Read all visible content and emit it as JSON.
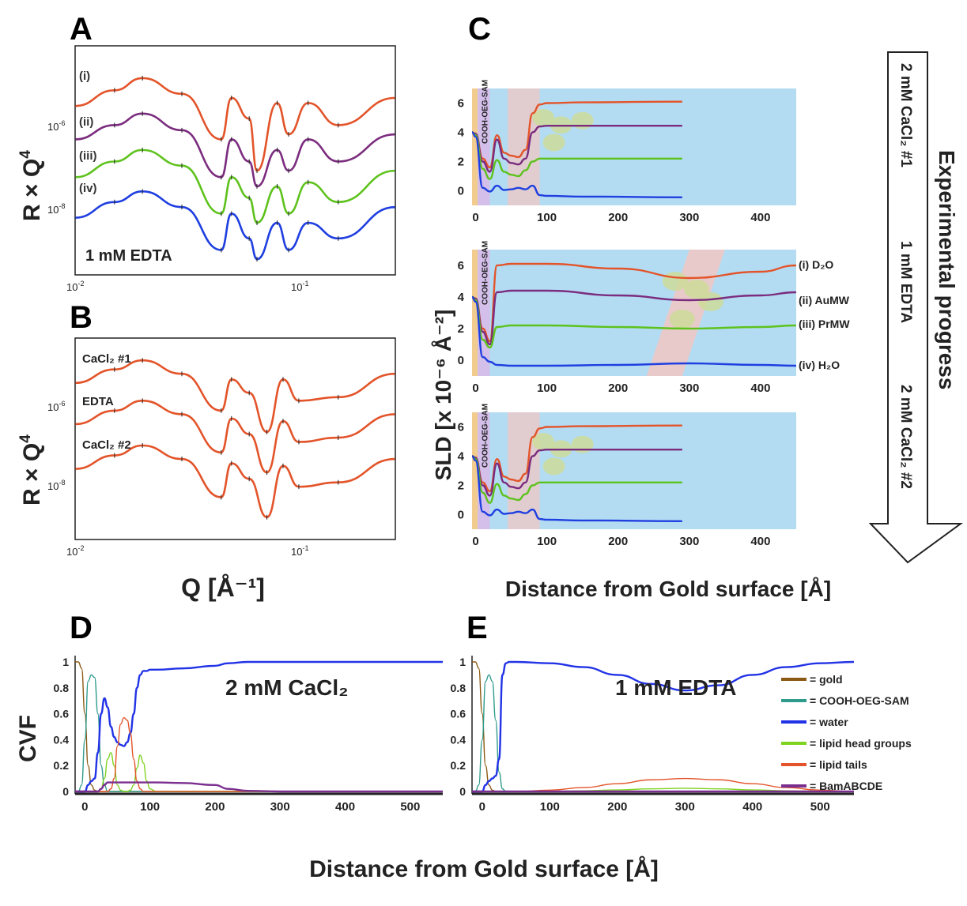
{
  "figure": {
    "panels": [
      {
        "id": "A",
        "type": "line",
        "ylabel": "R × Q",
        "ylabel_sup": "4",
        "annotation": "1 mM EDTA",
        "xscale": "log",
        "yscale": "log",
        "xticks": [
          {
            "base": "10",
            "exp": "-2"
          },
          {
            "base": "10",
            "exp": "-1"
          }
        ],
        "yticks": [
          {
            "base": "10",
            "exp": "-6"
          },
          {
            "base": "10",
            "exp": "-8"
          }
        ],
        "series": [
          {
            "name": "(i)",
            "color": "#e3542a"
          },
          {
            "name": "(ii)",
            "color": "#7b2c7e"
          },
          {
            "name": "(iii)",
            "color": "#5ec21d"
          },
          {
            "name": "(iv)",
            "color": "#1f3fe0"
          }
        ]
      },
      {
        "id": "B",
        "type": "line",
        "ylabel": "R × Q",
        "ylabel_sup": "4",
        "xscale": "log",
        "yscale": "log",
        "xticks": [
          {
            "base": "10",
            "exp": "-2"
          },
          {
            "base": "10",
            "exp": "-1"
          }
        ],
        "yticks": [
          {
            "base": "10",
            "exp": "-6"
          },
          {
            "base": "10",
            "exp": "-8"
          }
        ],
        "series": [
          {
            "name": "CaCl₂ #1",
            "color": "#e3542a"
          },
          {
            "name": "EDTA",
            "color": "#e3542a"
          },
          {
            "name": "CaCl₂ #2",
            "color": "#e3542a"
          }
        ]
      },
      {
        "id": "C",
        "type": "line",
        "ylabel": "SLD [x 10⁻⁶ Å⁻²]",
        "xlabel": "Distance from Gold surface [Å]",
        "xticks": [
          0,
          100,
          200,
          300,
          400
        ],
        "yticks": [
          0,
          2,
          4,
          6
        ],
        "layer_label": "COOH-OEG-SAM",
        "series_labels": [
          "(i) D₂O",
          "(ii) AuMW",
          "(iii) PrMW",
          "(iv) H₂O"
        ]
      },
      {
        "id": "D",
        "type": "line",
        "ylabel": "CVF",
        "annotation": "2 mM CaCl₂",
        "xticks": [
          0,
          100,
          200,
          300,
          400,
          500
        ],
        "yticks": [
          0,
          0.2,
          0.4,
          0.6,
          0.8,
          1
        ]
      },
      {
        "id": "E",
        "type": "line",
        "annotation": "1 mM EDTA",
        "xticks": [
          0,
          100,
          200,
          300,
          400,
          500
        ],
        "yticks": [
          0,
          0.2,
          0.4,
          0.6,
          0.8,
          1
        ]
      }
    ],
    "shared_xlabel_AB": "Q [Å⁻¹]",
    "shared_xlabel_DE": "Distance from Gold surface [Å]",
    "arrow": {
      "title": "Experimental progress",
      "steps": [
        "2 mM CaCl₂ #1",
        "1 mM EDTA",
        "2 mM CaCl₂ #2"
      ]
    },
    "legend": [
      {
        "label": "= gold",
        "color": "#8b5a14"
      },
      {
        "label": "= COOH-OEG-SAM",
        "color": "#2e9b8c"
      },
      {
        "label": "= water",
        "color": "#2233e6"
      },
      {
        "label": "= lipid head groups",
        "color": "#7ed321"
      },
      {
        "label": "= lipid tails",
        "color": "#e3542a"
      },
      {
        "label": "= BamABCDE",
        "color": "#7a2f8f"
      }
    ]
  },
  "chart_data": [
    {
      "type": "line",
      "panel": "A",
      "x": [
        0.01,
        0.015,
        0.02,
        0.03,
        0.045,
        0.05,
        0.06,
        0.065,
        0.08,
        0.09,
        0.11,
        0.15,
        0.27
      ],
      "series": [
        {
          "name": "(i)",
          "values": [
            3.5e-06,
            7e-06,
            1.2e-05,
            6e-06,
            8e-07,
            5e-06,
            2e-06,
            2e-07,
            4e-06,
            1e-06,
            4e-06,
            1.5e-06,
            5e-06
          ]
        },
        {
          "name": "(ii)",
          "values": [
            8e-07,
            1.5e-06,
            2.5e-06,
            1.2e-06,
            1.5e-07,
            8e-07,
            3e-07,
            1e-07,
            5e-07,
            2e-07,
            8e-07,
            3e-07,
            1e-06
          ]
        },
        {
          "name": "(iii)",
          "values": [
            1.5e-07,
            3e-07,
            5e-07,
            2.5e-07,
            3e-08,
            1.5e-07,
            6e-08,
            2e-08,
            1e-07,
            3e-08,
            1.2e-07,
            5e-08,
            2e-07
          ]
        },
        {
          "name": "(iv)",
          "values": [
            2.5e-08,
            5e-08,
            8e-08,
            4e-08,
            6e-09,
            3e-08,
            1e-08,
            4e-09,
            2e-08,
            6e-09,
            2e-08,
            1e-08,
            4e-08
          ]
        }
      ]
    },
    {
      "type": "line",
      "panel": "B",
      "x": [
        0.01,
        0.015,
        0.02,
        0.03,
        0.045,
        0.05,
        0.06,
        0.072,
        0.085,
        0.1,
        0.15,
        0.27
      ],
      "series": [
        {
          "name": "CaCl₂ #1",
          "values": [
            2.5e-06,
            5e-06,
            8e-06,
            4e-06,
            6e-07,
            3e-06,
            1.5e-06,
            2e-07,
            3e-06,
            1e-06,
            1.2e-06,
            4e-06
          ]
        },
        {
          "name": "EDTA",
          "values": [
            3e-07,
            6e-07,
            1e-06,
            5e-07,
            7e-08,
            4e-07,
            1.8e-07,
            2.5e-08,
            3.5e-07,
            1.2e-07,
            1.5e-07,
            5e-07
          ]
        },
        {
          "name": "CaCl₂ #2",
          "values": [
            3e-08,
            6e-08,
            1e-07,
            5e-08,
            7e-09,
            4e-08,
            1.8e-08,
            2.5e-09,
            3.5e-08,
            1.2e-08,
            1.5e-08,
            5e-08
          ]
        }
      ]
    },
    {
      "type": "line",
      "panel": "C",
      "subplot": "2 mM CaCl₂ #1",
      "xlim": [
        -5,
        450
      ],
      "ylim": [
        -1,
        7
      ],
      "x": [
        -5,
        0,
        10,
        20,
        30,
        40,
        50,
        60,
        70,
        80,
        90,
        100,
        150,
        290
      ],
      "series": [
        {
          "name": "(i) D₂O",
          "values": [
            4,
            3.9,
            2.2,
            1.6,
            3.8,
            2.6,
            2.4,
            2.3,
            2.8,
            5.3,
            5.9,
            6.0,
            6.05,
            6.1
          ]
        },
        {
          "name": "(ii) AuMW",
          "values": [
            4,
            3.9,
            2.0,
            1.3,
            3.5,
            2.2,
            1.9,
            1.8,
            2.2,
            4.0,
            4.4,
            4.45,
            4.45,
            4.45
          ]
        },
        {
          "name": "(iii) PrMW",
          "values": [
            4,
            3.8,
            1.5,
            0.8,
            2.1,
            1.3,
            1.1,
            1.0,
            1.4,
            2.0,
            2.2,
            2.2,
            2.2,
            2.2
          ]
        },
        {
          "name": "(iv) H₂O",
          "values": [
            4,
            3.7,
            0.2,
            -0.05,
            0.35,
            0.05,
            0.1,
            0.2,
            0.1,
            0.35,
            -0.3,
            -0.35,
            -0.4,
            -0.45
          ]
        }
      ]
    },
    {
      "type": "line",
      "panel": "C",
      "subplot": "1 mM EDTA",
      "xlim": [
        -5,
        450
      ],
      "ylim": [
        -1,
        7
      ],
      "x": [
        -5,
        0,
        10,
        20,
        30,
        50,
        100,
        200,
        300,
        400,
        450
      ],
      "series": [
        {
          "name": "(i) D₂O",
          "values": [
            4,
            3.9,
            2.0,
            1.2,
            6.0,
            6.1,
            6.1,
            5.8,
            5.2,
            5.6,
            6.0
          ]
        },
        {
          "name": "(ii) AuMW",
          "values": [
            4,
            3.9,
            1.8,
            1.0,
            4.3,
            4.4,
            4.4,
            4.1,
            3.8,
            4.1,
            4.3
          ]
        },
        {
          "name": "(iii) PrMW",
          "values": [
            4,
            3.8,
            1.3,
            0.8,
            2.1,
            2.2,
            2.2,
            2.1,
            2.0,
            2.1,
            2.2
          ]
        },
        {
          "name": "(iv) H₂O",
          "values": [
            4,
            3.7,
            0.2,
            -0.1,
            -0.3,
            -0.35,
            -0.35,
            -0.3,
            -0.2,
            -0.3,
            -0.35
          ]
        }
      ]
    },
    {
      "type": "line",
      "panel": "C",
      "subplot": "2 mM CaCl₂ #2",
      "xlim": [
        -5,
        450
      ],
      "ylim": [
        -1,
        7
      ],
      "x": [
        -5,
        0,
        10,
        20,
        30,
        40,
        50,
        60,
        70,
        80,
        90,
        100,
        150,
        290
      ],
      "series": [
        {
          "name": "(i) D₂O",
          "values": [
            4,
            3.9,
            2.2,
            1.6,
            3.8,
            2.6,
            2.4,
            2.3,
            2.8,
            5.3,
            5.9,
            6.0,
            6.05,
            6.1
          ]
        },
        {
          "name": "(ii) AuMW",
          "values": [
            4,
            3.9,
            2.0,
            1.3,
            3.5,
            2.2,
            1.9,
            1.8,
            2.2,
            4.0,
            4.4,
            4.45,
            4.45,
            4.45
          ]
        },
        {
          "name": "(iii) PrMW",
          "values": [
            4,
            3.8,
            1.5,
            0.8,
            2.1,
            1.3,
            1.1,
            1.0,
            1.4,
            2.0,
            2.2,
            2.2,
            2.2,
            2.2
          ]
        },
        {
          "name": "(iv) H₂O",
          "values": [
            4,
            3.7,
            0.2,
            -0.05,
            0.35,
            0.05,
            0.1,
            0.2,
            0.1,
            0.35,
            -0.3,
            -0.35,
            -0.4,
            -0.45
          ]
        }
      ]
    },
    {
      "type": "line",
      "panel": "D",
      "xlim": [
        -15,
        550
      ],
      "ylim": [
        0,
        1
      ],
      "x": [
        -15,
        -10,
        -5,
        0,
        5,
        10,
        15,
        20,
        25,
        30,
        35,
        40,
        45,
        50,
        55,
        60,
        65,
        70,
        75,
        80,
        85,
        90,
        95,
        100,
        110,
        150,
        200,
        220,
        250,
        300,
        400,
        550
      ],
      "series": [
        {
          "name": "gold",
          "values": [
            1,
            1,
            0.95,
            0.6,
            0.2,
            0.05,
            0.01,
            0,
            0,
            0,
            0,
            0,
            0,
            0,
            0,
            0,
            0,
            0,
            0,
            0,
            0,
            0,
            0,
            0,
            0,
            0,
            0,
            0,
            0,
            0,
            0,
            0
          ]
        },
        {
          "name": "COOH-OEG-SAM",
          "values": [
            0,
            0,
            0.05,
            0.4,
            0.85,
            0.9,
            0.88,
            0.6,
            0.2,
            0.05,
            0,
            0,
            0,
            0,
            0,
            0,
            0,
            0,
            0,
            0,
            0,
            0,
            0,
            0,
            0,
            0,
            0,
            0,
            0,
            0,
            0,
            0
          ]
        },
        {
          "name": "water",
          "values": [
            0,
            0,
            0,
            0,
            0.05,
            0.08,
            0.1,
            0.3,
            0.6,
            0.72,
            0.65,
            0.5,
            0.42,
            0.38,
            0.36,
            0.35,
            0.38,
            0.45,
            0.6,
            0.8,
            0.9,
            0.93,
            0.93,
            0.94,
            0.94,
            0.95,
            0.97,
            0.99,
            1,
            1,
            1,
            1
          ]
        },
        {
          "name": "lipid head groups",
          "values": [
            0,
            0,
            0,
            0,
            0,
            0,
            0,
            0,
            0.02,
            0.1,
            0.25,
            0.3,
            0.2,
            0.05,
            0.01,
            0,
            0,
            0.01,
            0.05,
            0.18,
            0.28,
            0.22,
            0.08,
            0.02,
            0,
            0,
            0,
            0,
            0,
            0,
            0,
            0
          ]
        },
        {
          "name": "lipid tails",
          "values": [
            0,
            0,
            0,
            0,
            0,
            0,
            0,
            0,
            0,
            0,
            0,
            0.02,
            0.1,
            0.35,
            0.52,
            0.57,
            0.55,
            0.45,
            0.25,
            0.08,
            0.02,
            0,
            0,
            0,
            0,
            0,
            0,
            0,
            0,
            0,
            0,
            0
          ]
        },
        {
          "name": "BamABCDE",
          "values": [
            0,
            0,
            0,
            0,
            0,
            0,
            0,
            0,
            0.02,
            0.05,
            0.07,
            0.07,
            0.07,
            0.07,
            0.07,
            0.07,
            0.07,
            0.07,
            0.07,
            0.07,
            0.07,
            0.07,
            0.07,
            0.07,
            0.07,
            0.065,
            0.05,
            0.02,
            0.005,
            0,
            0,
            0
          ]
        }
      ]
    },
    {
      "type": "line",
      "panel": "E",
      "xlim": [
        -15,
        550
      ],
      "ylim": [
        0,
        1
      ],
      "x": [
        -15,
        -10,
        -5,
        0,
        5,
        10,
        15,
        20,
        25,
        30,
        35,
        40,
        50,
        100,
        150,
        200,
        250,
        300,
        350,
        400,
        450,
        500,
        550
      ],
      "series": [
        {
          "name": "gold",
          "values": [
            1,
            1,
            0.95,
            0.6,
            0.2,
            0.05,
            0.01,
            0,
            0,
            0,
            0,
            0,
            0,
            0,
            0,
            0,
            0,
            0,
            0,
            0,
            0,
            0,
            0
          ]
        },
        {
          "name": "COOH-OEG-SAM",
          "values": [
            0,
            0,
            0.05,
            0.4,
            0.85,
            0.9,
            0.85,
            0.55,
            0.15,
            0.02,
            0,
            0,
            0,
            0,
            0,
            0,
            0,
            0,
            0,
            0,
            0,
            0,
            0
          ]
        },
        {
          "name": "water",
          "values": [
            0,
            0,
            0,
            0,
            0.05,
            0.08,
            0.1,
            0.12,
            0.25,
            0.9,
            0.99,
            1,
            1,
            0.99,
            0.96,
            0.9,
            0.83,
            0.78,
            0.82,
            0.9,
            0.96,
            0.99,
            1
          ]
        },
        {
          "name": "lipid head groups",
          "values": [
            0,
            0,
            0,
            0,
            0,
            0,
            0,
            0,
            0,
            0,
            0,
            0,
            0,
            0,
            0.005,
            0.012,
            0.02,
            0.025,
            0.02,
            0.012,
            0.005,
            0.002,
            0
          ]
        },
        {
          "name": "lipid tails",
          "values": [
            0,
            0,
            0,
            0,
            0,
            0,
            0,
            0,
            0,
            0,
            0,
            0,
            0,
            0.01,
            0.03,
            0.06,
            0.09,
            0.1,
            0.09,
            0.06,
            0.03,
            0.01,
            0
          ]
        },
        {
          "name": "BamABCDE",
          "values": [
            0,
            0,
            0,
            0,
            0,
            0,
            0,
            0,
            0,
            0,
            0,
            0,
            0,
            0,
            0,
            0,
            0,
            0,
            0,
            0,
            0,
            0,
            0
          ]
        }
      ]
    }
  ]
}
